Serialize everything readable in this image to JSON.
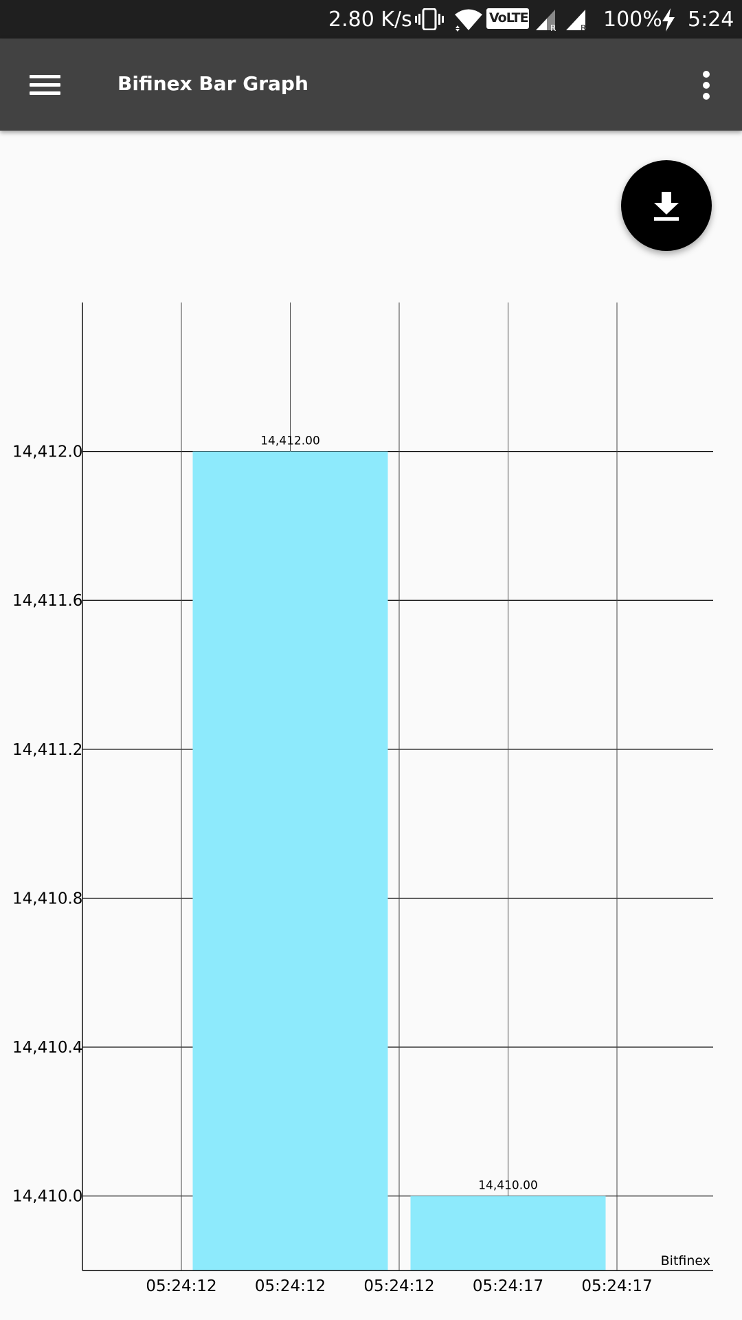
{
  "status_bar": {
    "net_speed": "2.80 K/s",
    "volte": "VoLTE",
    "battery": "100%",
    "time": "5:24",
    "icons": [
      "vibrate-icon",
      "wifi-icon",
      "volte-icon",
      "signal-roaming-icon",
      "signal-roaming-icon",
      "charging-icon"
    ]
  },
  "toolbar": {
    "title": "Bifinex Bar Graph",
    "menu_icon": "hamburger-menu-icon",
    "overflow_icon": "more-vert-icon"
  },
  "fab": {
    "icon": "download-icon"
  },
  "chart_data": {
    "type": "bar",
    "x_tick_labels": [
      "05:24:12",
      "05:24:12",
      "05:24:12",
      "05:24:17",
      "05:24:17"
    ],
    "categories": [
      "05:24:12",
      "05:24:17"
    ],
    "values": [
      14412.0,
      14410.0
    ],
    "value_labels": [
      "14,412.00",
      "14,410.00"
    ],
    "y_ticks": [
      14410.0,
      14410.4,
      14410.8,
      14411.2,
      14411.6,
      14412.0
    ],
    "y_tick_labels": [
      "14,410.0",
      "14,410.4",
      "14,410.8",
      "14,411.2",
      "14,411.6",
      "14,412.0"
    ],
    "ylim": [
      14409.8,
      14412.4
    ],
    "description": "Bitfinex",
    "bar_color": "#8deafc",
    "grid": true
  }
}
